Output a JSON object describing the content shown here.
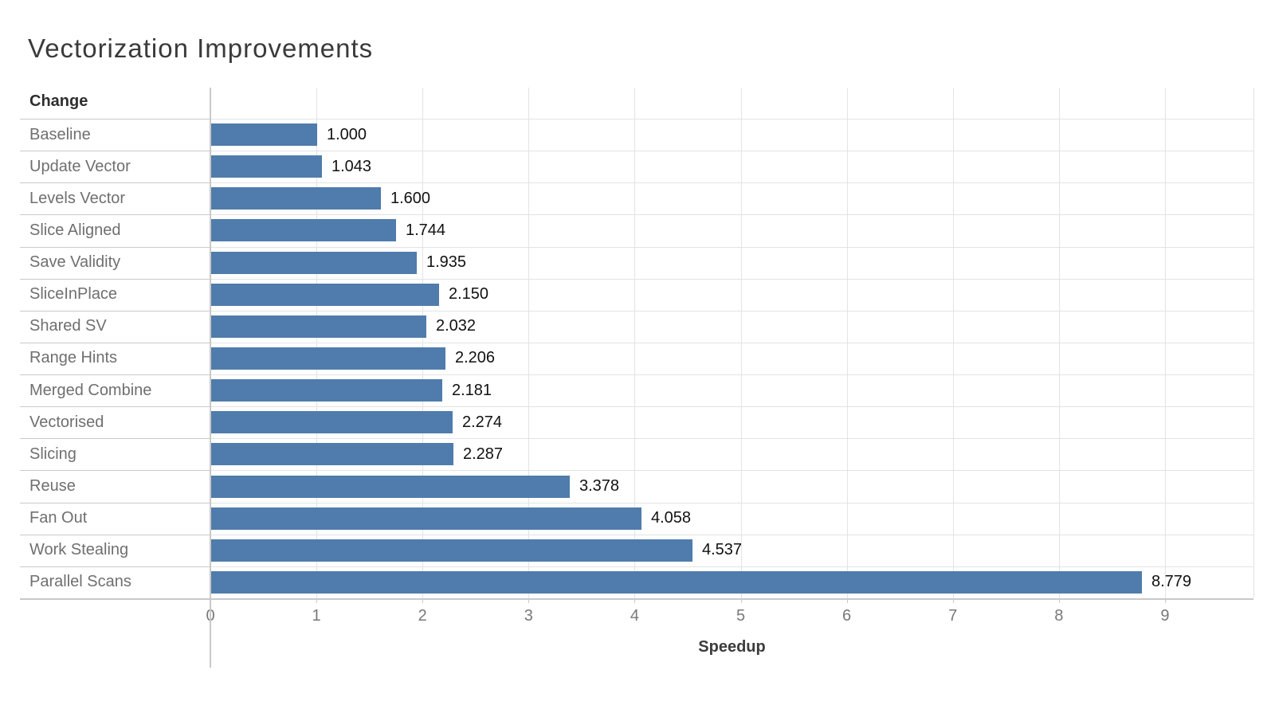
{
  "page": {
    "title": "Vectorization Improvements"
  },
  "chart_data": {
    "type": "bar",
    "orientation": "horizontal",
    "title": "Vectorization Improvements",
    "category_header": "Change",
    "categories": [
      "Baseline",
      "Update Vector",
      "Levels Vector",
      "Slice Aligned",
      "Save Validity",
      "SliceInPlace",
      "Shared SV",
      "Range Hints",
      "Merged Combine",
      "Vectorised",
      "Slicing",
      "Reuse",
      "Fan Out",
      "Work Stealing",
      "Parallel Scans"
    ],
    "values": [
      1.0,
      1.043,
      1.6,
      1.744,
      1.935,
      2.15,
      2.032,
      2.206,
      2.181,
      2.274,
      2.287,
      3.378,
      4.058,
      4.537,
      8.779
    ],
    "value_labels": [
      "1.000",
      "1.043",
      "1.600",
      "1.744",
      "1.935",
      "2.150",
      "2.032",
      "2.206",
      "2.181",
      "2.274",
      "2.287",
      "3.378",
      "4.058",
      "4.537",
      "8.779"
    ],
    "xlabel": "Speedup",
    "xticks": [
      0,
      1,
      2,
      3,
      4,
      5,
      6,
      7,
      8,
      9
    ],
    "xlim": [
      0,
      9.84
    ],
    "grid": true,
    "legend": "none",
    "bar_color": "#4f7cac",
    "value_label_color": "#111111",
    "category_label_color": "#6f6f6f",
    "tick_label_color": "#787878"
  }
}
